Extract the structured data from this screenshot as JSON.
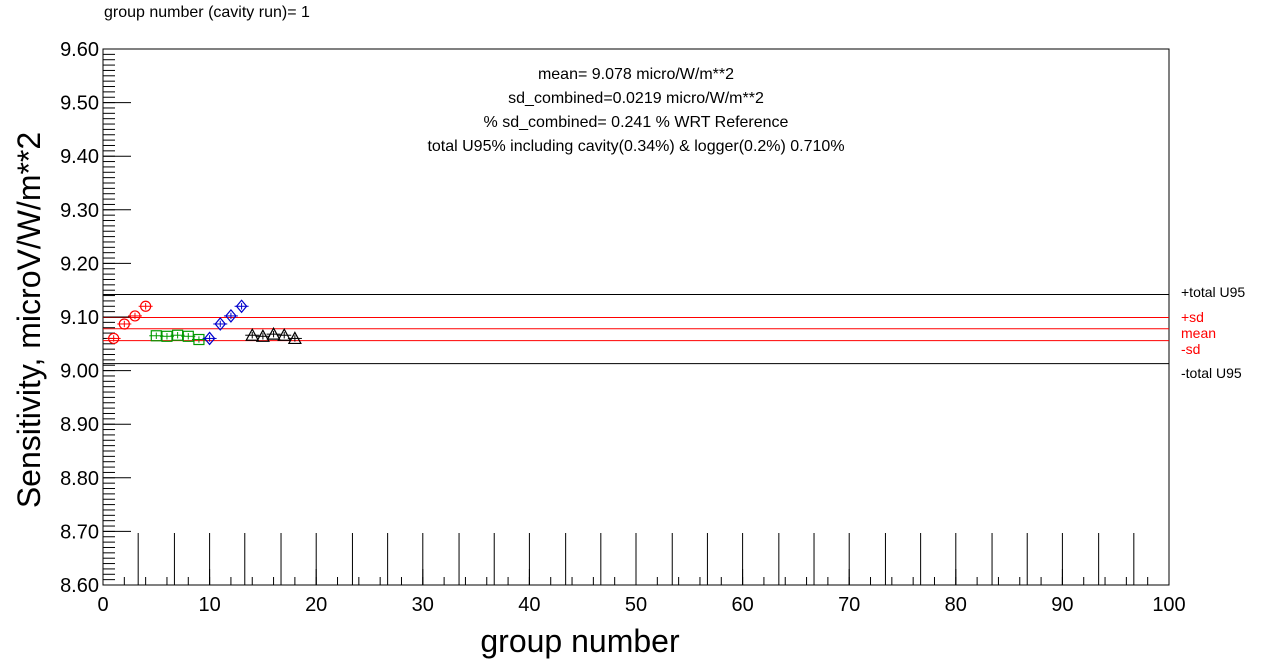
{
  "chart_data": {
    "type": "scatter",
    "header": "group number (cavity run)=  1",
    "xlabel": "group number",
    "ylabel": "Sensitivity, microV/W/m**2",
    "xlim": [
      0,
      100
    ],
    "ylim": [
      8.6,
      9.6
    ],
    "x_ticks": [
      "0",
      "10",
      "20",
      "30",
      "40",
      "50",
      "60",
      "70",
      "80",
      "90",
      "100"
    ],
    "y_ticks": [
      "8.60",
      "8.70",
      "8.80",
      "8.90",
      "9.00",
      "9.10",
      "9.20",
      "9.30",
      "9.40",
      "9.50",
      "9.60"
    ],
    "annotations": [
      "mean= 9.078 micro/W/m**2",
      "sd_combined=0.0219 micro/W/m**2",
      "% sd_combined= 0.241 % WRT Reference",
      "total U95% including cavity(0.34%) & logger(0.2%) 0.710%"
    ],
    "reference_lines": [
      {
        "label": "+total U95",
        "y": 9.142,
        "color": "#000000"
      },
      {
        "label": "+sd",
        "y": 9.099,
        "color": "#ff0000"
      },
      {
        "label": "mean",
        "y": 9.078,
        "color": "#ff0000"
      },
      {
        "label": "-sd",
        "y": 9.056,
        "color": "#ff0000"
      },
      {
        "label": "-total U95",
        "y": 9.013,
        "color": "#000000"
      }
    ],
    "group_dividers_x": [
      3.3,
      6.7,
      10,
      13.3,
      16.7,
      20,
      23.4,
      26.7,
      30,
      33.4,
      36.7,
      40,
      43.4,
      46.7,
      50,
      53.4,
      56.7,
      60,
      63.4,
      66.7,
      70,
      73.4,
      76.7,
      80,
      83.4,
      86.7,
      90,
      93.4,
      96.7
    ],
    "series": [
      {
        "marker": "circle",
        "color": "#ff0000",
        "err": 0.006,
        "x": [
          1,
          2,
          3,
          4
        ],
        "y": [
          9.06,
          9.087,
          9.102,
          9.12
        ]
      },
      {
        "marker": "square",
        "color": "#009900",
        "err": 0.006,
        "x": [
          5,
          6,
          7,
          8,
          9
        ],
        "y": [
          9.065,
          9.064,
          9.066,
          9.064,
          9.058
        ]
      },
      {
        "marker": "diamond",
        "color": "#0000cc",
        "err": 0.006,
        "x": [
          10,
          11,
          12,
          13
        ],
        "y": [
          9.06,
          9.087,
          9.102,
          9.12
        ]
      },
      {
        "marker": "triangle",
        "color": "#000000",
        "err": 0.006,
        "x": [
          14,
          15,
          16,
          17,
          18
        ],
        "y": [
          9.066,
          9.064,
          9.068,
          9.066,
          9.06
        ]
      }
    ]
  }
}
